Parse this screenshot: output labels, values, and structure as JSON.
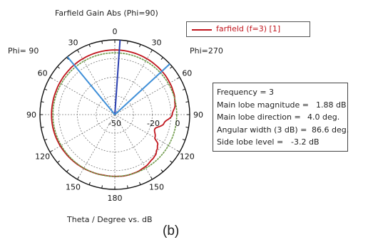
{
  "chart_data": {
    "type": "polar",
    "title": "Farfield Gain Abs (Phi=90)",
    "xlabel": "Theta / Degree vs. dB",
    "left_label": "Phi= 90",
    "right_label": "Phi=270",
    "angle_ticks": [
      "0",
      "30",
      "60",
      "90",
      "120",
      "150",
      "180",
      "150",
      "120",
      "90",
      "60",
      "30"
    ],
    "radial_ticks": [
      "-50",
      "-20",
      "0"
    ],
    "radial_range": [
      -50,
      10
    ],
    "legend": "farfield (f=3) [1]",
    "series": [
      {
        "name": "farfield (f=3) [1]",
        "color": "#c0151d",
        "theta_deg": [
          0,
          10,
          20,
          30,
          40,
          50,
          60,
          70,
          80,
          90,
          100,
          110,
          120,
          125,
          130,
          135,
          140,
          150,
          160,
          170,
          180,
          190,
          200,
          210,
          220,
          230,
          240,
          250,
          260,
          270,
          280,
          290,
          300,
          310,
          320,
          330,
          340,
          350
        ],
        "gain_db": [
          1.9,
          1.9,
          1.8,
          1.7,
          1.5,
          1.3,
          0.9,
          0.3,
          -1.0,
          -4.0,
          -10.0,
          -16.0,
          -13.0,
          -8.0,
          -6.0,
          -4.0,
          -3.2,
          -1.6,
          -0.6,
          -0.2,
          -0.4,
          -0.6,
          -0.4,
          -0.2,
          0.0,
          0.2,
          0.4,
          0.6,
          0.7,
          0.7,
          0.7,
          0.8,
          1.0,
          1.2,
          1.5,
          1.7,
          1.8,
          1.9
        ]
      },
      {
        "name": "",
        "color": "#6e9a4a",
        "theta_deg": [
          0,
          30,
          60,
          90,
          120,
          150,
          180,
          210,
          240,
          270,
          300,
          330
        ],
        "gain_db": [
          -0.4,
          -0.4,
          -0.4,
          -0.4,
          -0.4,
          -0.4,
          -0.4,
          -0.4,
          -0.4,
          -0.4,
          -0.4,
          -0.4
        ]
      }
    ],
    "markers": [
      {
        "name": "main-lobe",
        "theta_deg": 4,
        "color": "#2a3fb0"
      },
      {
        "name": "beamwidth-left",
        "theta_deg": -39.3,
        "color": "#3f8fd8"
      },
      {
        "name": "beamwidth-right",
        "theta_deg": 47.3,
        "color": "#3f8fd8"
      }
    ]
  },
  "info": {
    "frequency": "Frequency = 3",
    "rows": [
      {
        "label": "Main lobe magnitude =",
        "value": "1.88 dB"
      },
      {
        "label": "Main lobe direction =",
        "value": "4.0 deg."
      },
      {
        "label": "Angular width (3 dB) =",
        "value": "86.6 deg."
      },
      {
        "label": "Side lobe level =",
        "value": "-3.2 dB"
      }
    ]
  },
  "panel_label": "(b)"
}
